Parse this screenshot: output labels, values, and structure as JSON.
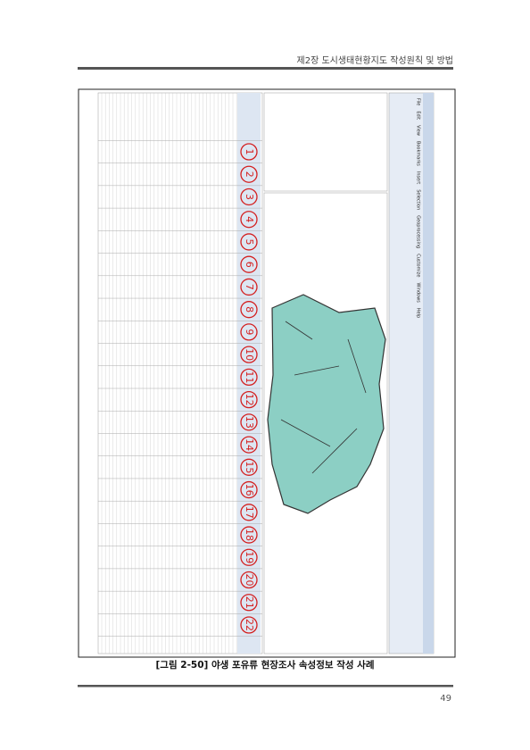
{
  "header": {
    "chapter": "제2장 도시생태현황지도 작성원칙 및 방법"
  },
  "figure": {
    "menu": [
      "File",
      "Edit",
      "View",
      "Bookmarks",
      "Insert",
      "Selection",
      "Geoprocessing",
      "Customize",
      "Windows",
      "Help"
    ],
    "markers": [
      "1",
      "2",
      "3",
      "4",
      "5",
      "6",
      "7",
      "8",
      "9",
      "10",
      "11",
      "12",
      "13",
      "14",
      "15",
      "16",
      "17",
      "18",
      "19",
      "20",
      "21",
      "22"
    ],
    "caption": "[그림 2-50] 야생 포유류 현장조사 속성정보 작성 사례"
  },
  "footer": {
    "page": "49"
  }
}
